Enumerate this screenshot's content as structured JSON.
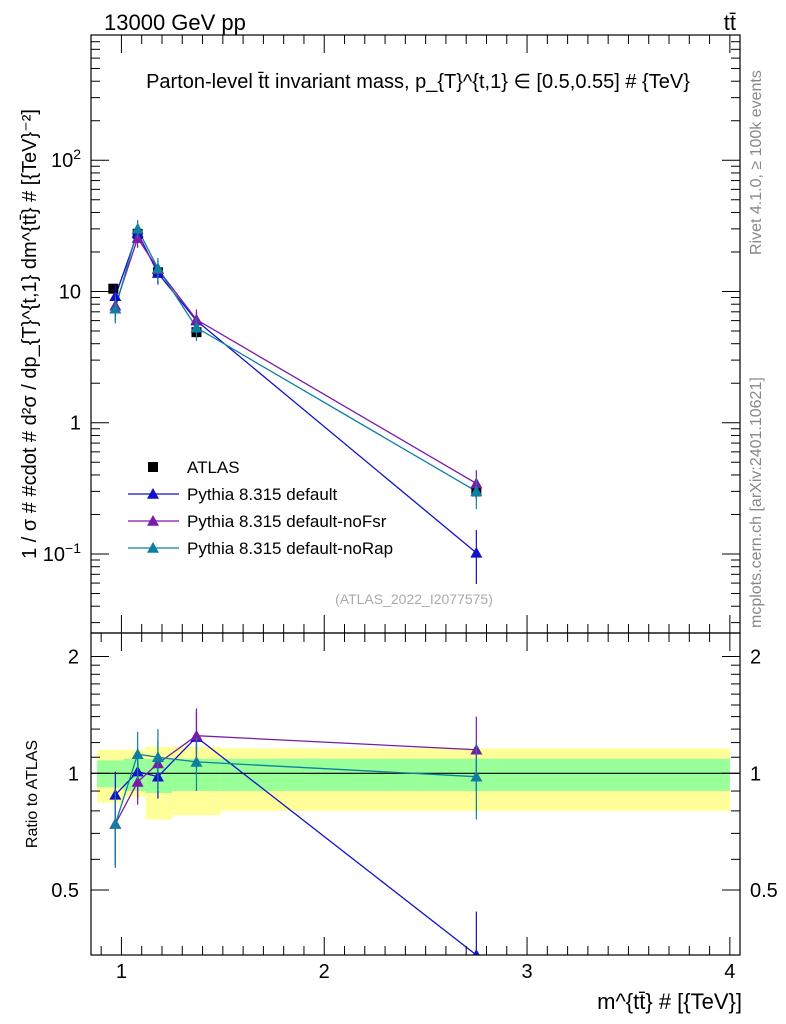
{
  "header": {
    "left": "13000 GeV pp",
    "right": "tt̄"
  },
  "side_labels": {
    "rivet": "Rivet 4.1.0, ≥ 100k events",
    "mcplots": "mcplots.cern.ch [arXiv:2401.10621]"
  },
  "chart_data": [
    {
      "type": "line",
      "panel": "main",
      "title": "Parton-level t̄t invariant mass, p_{T}^{t,1} ∈ [0.5,0.55] # {TeV}",
      "ylabel": "1 / σ # #cdot # d²σ / dp_{T}^{t,1} dm^{tt̄} # [{TeV}⁻²]",
      "xlabel": "",
      "watermark": "(ATLAS_2022_I2077575)",
      "yscale": "log",
      "ylim": [
        0.025,
        900
      ],
      "xlim": [
        0.85,
        4.05
      ],
      "yticks": [
        {
          "value": 0.1,
          "label": "10",
          "sup": "−1"
        },
        {
          "value": 1,
          "label": "1",
          "sup": ""
        },
        {
          "value": 10,
          "label": "10",
          "sup": ""
        },
        {
          "value": 100,
          "label": "10",
          "sup": "2"
        }
      ],
      "series": [
        {
          "name": "ATLAS",
          "color": "#000000",
          "marker": "square",
          "x": [
            0.96,
            1.08,
            1.18,
            1.37,
            2.75
          ],
          "y": [
            10.5,
            27.5,
            14.0,
            4.9,
            0.3
          ],
          "err": [
            0.8,
            2.0,
            1.2,
            0.5,
            0.03
          ]
        },
        {
          "name": "Pythia 8.315 default",
          "color": "#1111cc",
          "marker": "triangle",
          "x": [
            0.97,
            1.08,
            1.18,
            1.37,
            2.75
          ],
          "y": [
            9.2,
            28.0,
            13.8,
            6.0,
            0.102
          ],
          "err_lo": [
            2.0,
            4.0,
            2.5,
            1.0,
            0.043
          ],
          "err_hi": [
            2.0,
            4.0,
            2.5,
            1.0,
            0.05
          ]
        },
        {
          "name": "Pythia 8.315 default-noFsr",
          "color": "#7a1aa8",
          "marker": "triangle",
          "x": [
            0.97,
            1.08,
            1.18,
            1.37,
            2.75
          ],
          "y": [
            7.8,
            25.5,
            14.8,
            6.1,
            0.345
          ],
          "err_lo": [
            1.8,
            4.0,
            2.5,
            1.2,
            0.08
          ],
          "err_hi": [
            1.8,
            4.0,
            2.5,
            1.2,
            0.09
          ]
        },
        {
          "name": "Pythia 8.315 default-noRap",
          "color": "#0f7fa0",
          "marker": "triangle",
          "x": [
            0.97,
            1.08,
            1.18,
            1.37,
            2.75
          ],
          "y": [
            7.4,
            30.0,
            15.0,
            5.3,
            0.3
          ],
          "err_lo": [
            1.7,
            5.0,
            3.0,
            1.1,
            0.08
          ],
          "err_hi": [
            1.7,
            5.0,
            3.0,
            1.1,
            0.08
          ]
        }
      ]
    },
    {
      "type": "line",
      "panel": "ratio",
      "ylabel": "Ratio to ATLAS",
      "xlabel": "m^{tt̄} # [{TeV}]",
      "ylim": [
        0.34,
        2.3
      ],
      "xlim": [
        0.85,
        4.05
      ],
      "yticks": [
        0.5,
        1,
        2
      ],
      "xticks": [
        1,
        2,
        3,
        4
      ],
      "bands": [
        {
          "x0": 0.88,
          "x1": 1.01,
          "y_lo": 0.84,
          "y_hi": 1.15,
          "kind": "total"
        },
        {
          "x0": 1.01,
          "x1": 1.12,
          "y_lo": 0.87,
          "y_hi": 1.15,
          "kind": "total"
        },
        {
          "x0": 1.12,
          "x1": 1.25,
          "y_lo": 0.76,
          "y_hi": 1.17,
          "kind": "total"
        },
        {
          "x0": 1.25,
          "x1": 1.49,
          "y_lo": 0.78,
          "y_hi": 1.17,
          "kind": "total"
        },
        {
          "x0": 1.49,
          "x1": 4.0,
          "y_lo": 0.8,
          "y_hi": 1.16,
          "kind": "total"
        },
        {
          "x0": 0.88,
          "x1": 1.01,
          "y_lo": 0.92,
          "y_hi": 1.08,
          "kind": "stat"
        },
        {
          "x0": 1.01,
          "x1": 1.12,
          "y_lo": 0.9,
          "y_hi": 1.09,
          "kind": "stat"
        },
        {
          "x0": 1.12,
          "x1": 1.25,
          "y_lo": 0.89,
          "y_hi": 1.09,
          "kind": "stat"
        },
        {
          "x0": 1.25,
          "x1": 1.49,
          "y_lo": 0.9,
          "y_hi": 1.09,
          "kind": "stat"
        },
        {
          "x0": 1.49,
          "x1": 4.0,
          "y_lo": 0.9,
          "y_hi": 1.09,
          "kind": "stat"
        }
      ],
      "series": [
        {
          "name": "Pythia 8.315 default",
          "color": "#1111cc",
          "x": [
            0.97,
            1.08,
            1.18,
            1.37,
            2.75
          ],
          "y": [
            0.88,
            1.01,
            0.98,
            1.24,
            0.34
          ],
          "err_lo": [
            0.3,
            0.15,
            0.12,
            0.2,
            0.1
          ],
          "err_hi": [
            0.13,
            0.15,
            0.12,
            0.2,
            0.1
          ]
        },
        {
          "name": "Pythia 8.315 default-noFsr",
          "color": "#7a1aa8",
          "x": [
            0.97,
            1.08,
            1.18,
            1.37,
            2.75
          ],
          "y": [
            0.74,
            0.95,
            1.06,
            1.25,
            1.15
          ],
          "err_lo": [
            0.16,
            0.12,
            0.15,
            0.22,
            0.25
          ],
          "err_hi": [
            0.16,
            0.12,
            0.15,
            0.22,
            0.25
          ]
        },
        {
          "name": "Pythia 8.315 default-noRap",
          "color": "#0f7fa0",
          "x": [
            0.97,
            1.08,
            1.18,
            1.37,
            2.75
          ],
          "y": [
            0.74,
            1.12,
            1.1,
            1.07,
            0.98
          ],
          "err_lo": [
            0.17,
            0.16,
            0.2,
            0.17,
            0.22
          ],
          "err_hi": [
            0.17,
            0.16,
            0.2,
            0.17,
            0.22
          ]
        }
      ]
    }
  ],
  "colors": {
    "band_total": "#ffff99",
    "band_stat": "#99ff99"
  }
}
